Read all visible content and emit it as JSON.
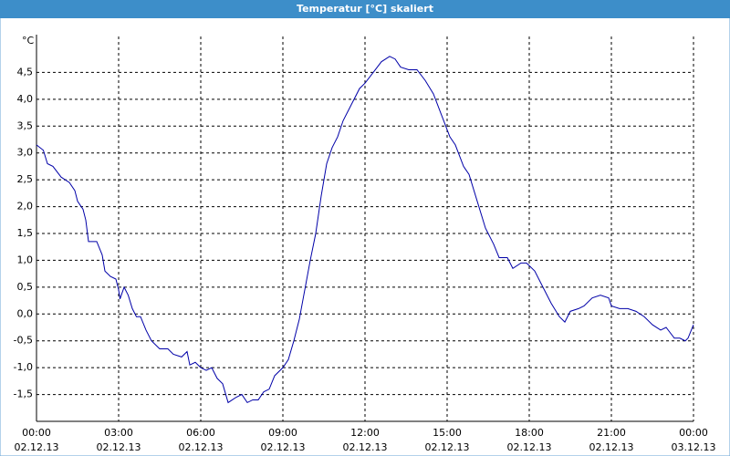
{
  "chart_data": {
    "type": "line",
    "title": "Temperatur [°C] skaliert",
    "y_label": "°C",
    "x": [
      0,
      0.25,
      0.4,
      0.6,
      0.9,
      1.2,
      1.4,
      1.5,
      1.7,
      1.8,
      1.9,
      2.2,
      2.4,
      2.5,
      2.7,
      2.9,
      3.0,
      3.05,
      3.2,
      3.35,
      3.5,
      3.65,
      3.8,
      4.0,
      4.2,
      4.5,
      4.8,
      5.0,
      5.3,
      5.5,
      5.6,
      5.8,
      6.0,
      6.2,
      6.4,
      6.6,
      6.8,
      7.0,
      7.3,
      7.5,
      7.7,
      7.9,
      8.1,
      8.3,
      8.5,
      8.7,
      9.0,
      9.2,
      9.4,
      9.6,
      9.8,
      10.0,
      10.2,
      10.4,
      10.6,
      10.8,
      11.0,
      11.2,
      11.5,
      11.8,
      12.0,
      12.3,
      12.6,
      12.9,
      13.1,
      13.3,
      13.6,
      13.9,
      14.2,
      14.5,
      14.8,
      15.1,
      15.3,
      15.6,
      15.8,
      16.1,
      16.4,
      16.7,
      16.9,
      17.2,
      17.4,
      17.7,
      17.9,
      18.2,
      18.5,
      18.8,
      19.1,
      19.3,
      19.5,
      19.8,
      20.0,
      20.3,
      20.6,
      20.9,
      21.0,
      21.3,
      21.6,
      21.9,
      22.2,
      22.5,
      22.8,
      23.0,
      23.3,
      23.5,
      23.7,
      23.8,
      24.0
    ],
    "series": [
      {
        "name": "Temperatur",
        "color": "#0000a8",
        "values": [
          3.15,
          3.05,
          2.8,
          2.75,
          2.55,
          2.45,
          2.3,
          2.1,
          1.95,
          1.75,
          1.35,
          1.35,
          1.1,
          0.8,
          0.7,
          0.65,
          0.45,
          0.28,
          0.5,
          0.35,
          0.1,
          -0.05,
          -0.05,
          -0.3,
          -0.5,
          -0.65,
          -0.65,
          -0.75,
          -0.8,
          -0.7,
          -0.95,
          -0.9,
          -1.0,
          -1.05,
          -1.0,
          -1.2,
          -1.3,
          -1.65,
          -1.55,
          -1.5,
          -1.65,
          -1.6,
          -1.6,
          -1.45,
          -1.4,
          -1.15,
          -1.0,
          -0.85,
          -0.5,
          -0.1,
          0.45,
          1.0,
          1.5,
          2.2,
          2.8,
          3.1,
          3.3,
          3.6,
          3.9,
          4.2,
          4.3,
          4.5,
          4.7,
          4.8,
          4.75,
          4.6,
          4.55,
          4.55,
          4.35,
          4.1,
          3.7,
          3.3,
          3.15,
          2.75,
          2.6,
          2.1,
          1.6,
          1.3,
          1.05,
          1.05,
          0.85,
          0.95,
          0.95,
          0.8,
          0.5,
          0.2,
          -0.05,
          -0.15,
          0.05,
          0.1,
          0.15,
          0.3,
          0.35,
          0.3,
          0.15,
          0.1,
          0.1,
          0.05,
          -0.05,
          -0.2,
          -0.3,
          -0.25,
          -0.45,
          -0.45,
          -0.5,
          -0.45,
          -0.2
        ]
      }
    ],
    "xlim": [
      0,
      24
    ],
    "xticks": [
      {
        "value": 0,
        "label": [
          "00:00",
          "02.12.13"
        ]
      },
      {
        "value": 3,
        "label": [
          "03:00",
          "02.12.13"
        ]
      },
      {
        "value": 6,
        "label": [
          "06:00",
          "02.12.13"
        ]
      },
      {
        "value": 9,
        "label": [
          "09:00",
          "02.12.13"
        ]
      },
      {
        "value": 12,
        "label": [
          "12:00",
          "02.12.13"
        ]
      },
      {
        "value": 15,
        "label": [
          "15:00",
          "02.12.13"
        ]
      },
      {
        "value": 18,
        "label": [
          "18:00",
          "02.12.13"
        ]
      },
      {
        "value": 21,
        "label": [
          "21:00",
          "02.12.13"
        ]
      },
      {
        "value": 24,
        "label": [
          "00:00",
          "03.12.13"
        ]
      }
    ],
    "ylim": [
      -2,
      5
    ],
    "yticks": [
      {
        "value": -1.5,
        "label": "-1,5"
      },
      {
        "value": -1,
        "label": "-1,0"
      },
      {
        "value": -0.5,
        "label": "-0,5"
      },
      {
        "value": 0,
        "label": "0,0"
      },
      {
        "value": 0.5,
        "label": "0,5"
      },
      {
        "value": 1,
        "label": "1,0"
      },
      {
        "value": 1.5,
        "label": "1,5"
      },
      {
        "value": 2,
        "label": "2,0"
      },
      {
        "value": 2.5,
        "label": "2,5"
      },
      {
        "value": 3,
        "label": "3,0"
      },
      {
        "value": 3.5,
        "label": "3,5"
      },
      {
        "value": 4,
        "label": "4,0"
      },
      {
        "value": 4.5,
        "label": "4,5"
      }
    ],
    "grid": true
  }
}
